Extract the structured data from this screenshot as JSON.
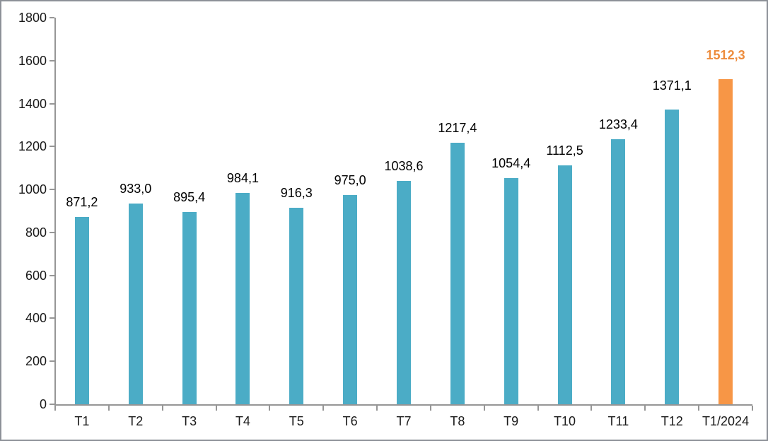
{
  "chart_data": {
    "type": "bar",
    "title": "",
    "xlabel": "",
    "ylabel": "",
    "categories": [
      "T1",
      "T2",
      "T3",
      "T4",
      "T5",
      "T6",
      "T7",
      "T8",
      "T9",
      "T10",
      "T11",
      "T12",
      "T1/2024"
    ],
    "values": [
      871.2,
      933.0,
      895.4,
      984.1,
      916.3,
      975.0,
      1038.6,
      1217.4,
      1054.4,
      1112.5,
      1233.4,
      1371.1,
      1512.3
    ],
    "value_labels": [
      "871,2",
      "933,0",
      "895,4",
      "984,1",
      "916,3",
      "975,0",
      "1038,6",
      "1217,4",
      "1054,4",
      "1112,5",
      "1233,4",
      "1371,1",
      "1512,3"
    ],
    "ylim": [
      0,
      1800
    ],
    "ytick_values": [
      0,
      200,
      400,
      600,
      800,
      1000,
      1200,
      1400,
      1600,
      1800
    ],
    "ytick_labels": [
      "0",
      "200",
      "400",
      "600",
      "800",
      "1000",
      "1200",
      "1400",
      "1600",
      "1800"
    ],
    "grid": false,
    "legend": "none",
    "decimal_separator": ",",
    "colors": {
      "bar": "#4BACC6",
      "highlight_bar": "#F79646",
      "highlight_label": "#ED8C3C",
      "label": "#000000",
      "axis": "#969696"
    },
    "highlight_index": 12
  }
}
